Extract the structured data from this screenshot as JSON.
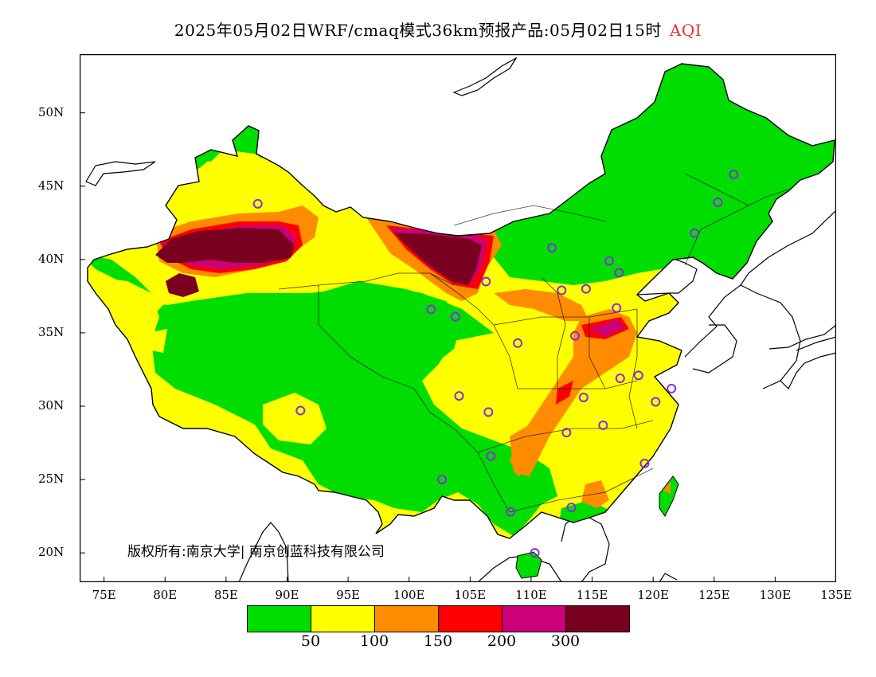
{
  "title": {
    "text": "2025年05月02日WRF/cmaq模式36km预报产品:05月02日15时",
    "param": "AQI"
  },
  "copyright": "版权所有:南京大学| 南京创蓝科技有限公司",
  "axes": {
    "lat_labels": [
      "50N",
      "45N",
      "40N",
      "35N",
      "30N",
      "25N",
      "20N"
    ],
    "lon_labels": [
      "75E",
      "80E",
      "85E",
      "90E",
      "95E",
      "100E",
      "105E",
      "110E",
      "115E",
      "120E",
      "125E",
      "130E",
      "135E"
    ],
    "lon_range": [
      73,
      135
    ],
    "lat_range": [
      18,
      54
    ]
  },
  "legend": {
    "colors": [
      "#00dd00",
      "#ffff00",
      "#ff8c00",
      "#ff0000",
      "#cc0077",
      "#7a0020"
    ],
    "labels": [
      "50",
      "100",
      "150",
      "200",
      "300"
    ]
  },
  "stations": [
    [
      87.6,
      43.8
    ],
    [
      91.1,
      29.7
    ],
    [
      101.8,
      36.6
    ],
    [
      103.8,
      36.1
    ],
    [
      106.3,
      38.5
    ],
    [
      104.1,
      30.7
    ],
    [
      106.5,
      29.6
    ],
    [
      106.7,
      26.6
    ],
    [
      102.7,
      25.0
    ],
    [
      108.3,
      22.8
    ],
    [
      110.3,
      20.0
    ],
    [
      108.9,
      34.3
    ],
    [
      111.7,
      40.8
    ],
    [
      112.5,
      37.9
    ],
    [
      113.6,
      34.8
    ],
    [
      114.5,
      38.0
    ],
    [
      116.4,
      39.9
    ],
    [
      117.2,
      39.1
    ],
    [
      117.0,
      36.7
    ],
    [
      114.3,
      30.6
    ],
    [
      112.9,
      28.2
    ],
    [
      115.9,
      28.7
    ],
    [
      117.3,
      31.9
    ],
    [
      118.8,
      32.1
    ],
    [
      120.2,
      30.3
    ],
    [
      121.5,
      31.2
    ],
    [
      119.3,
      26.1
    ],
    [
      113.3,
      23.1
    ],
    [
      123.4,
      41.8
    ],
    [
      125.3,
      43.9
    ],
    [
      126.6,
      45.8
    ]
  ]
}
